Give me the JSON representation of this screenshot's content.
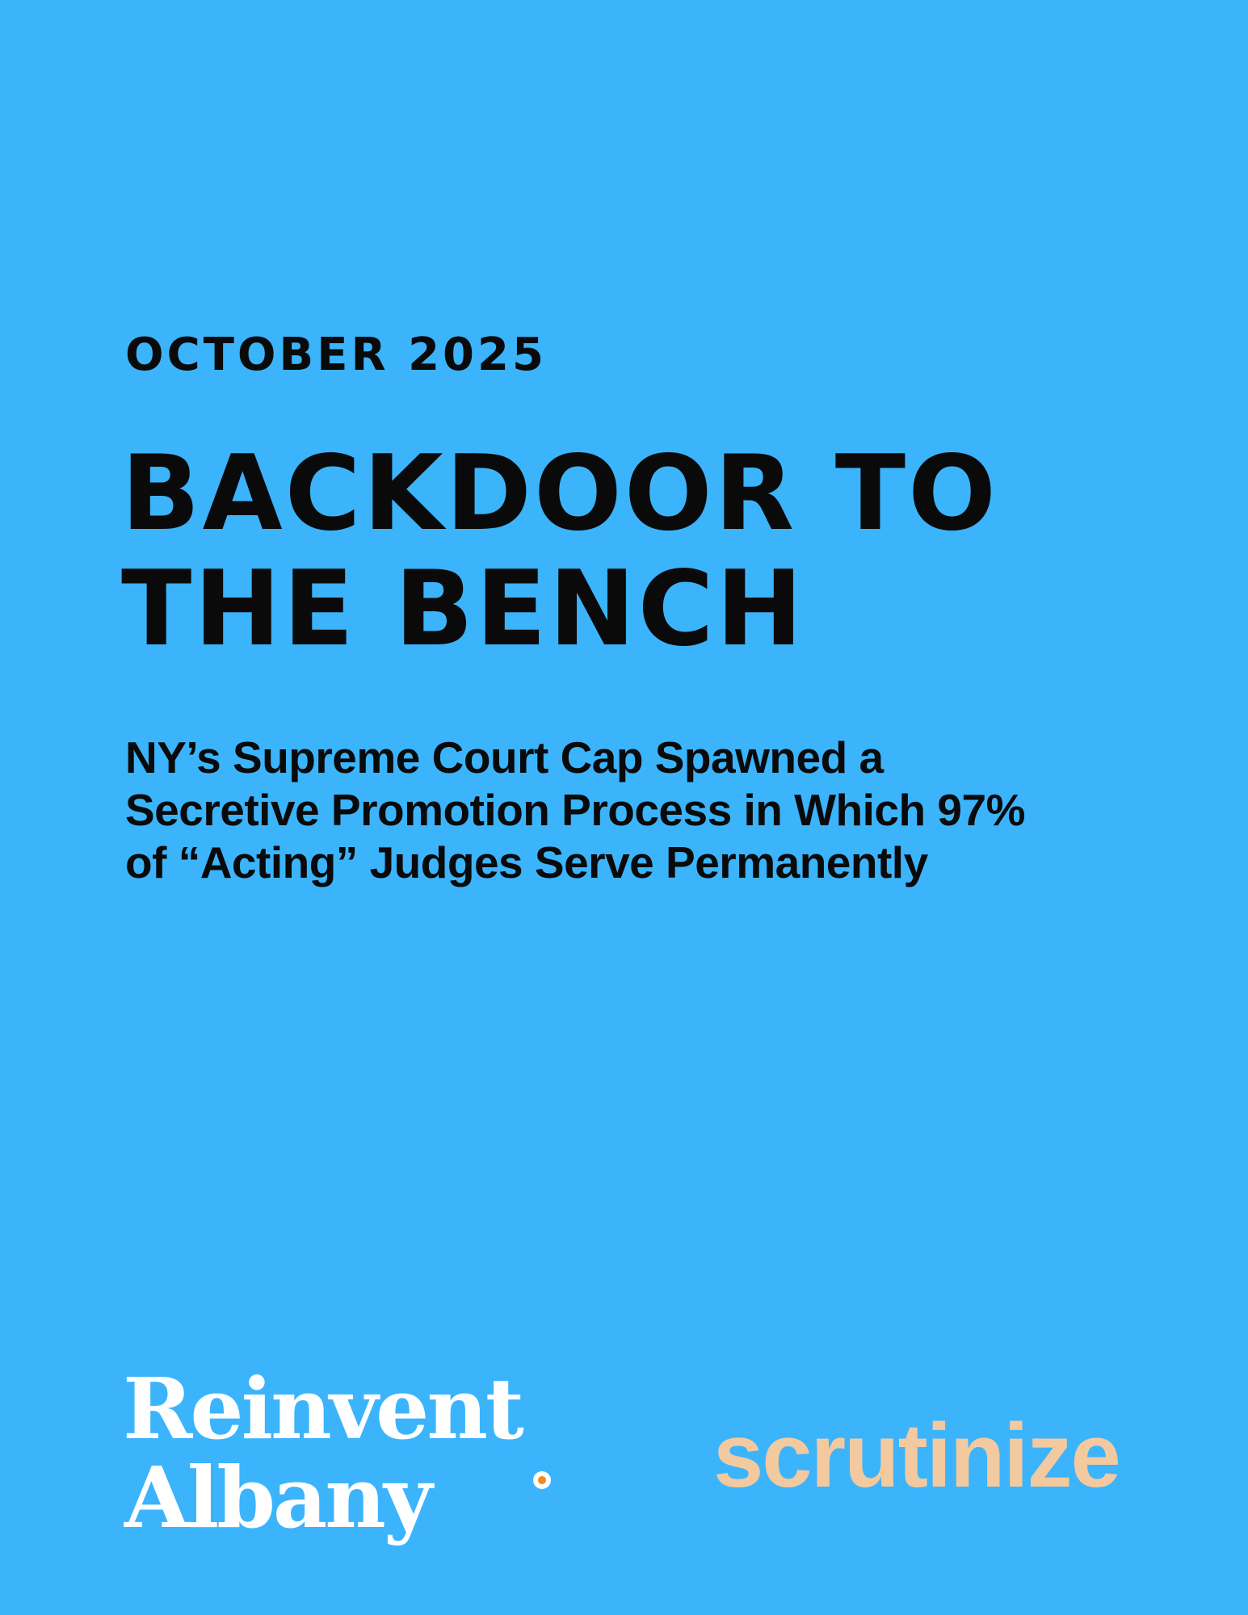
{
  "cover": {
    "date": "OCTOBER 2025",
    "title_lines": [
      "BACKDOOR TO",
      "THE BENCH"
    ],
    "subtitle_lines": [
      "NY’s Supreme Court Cap Spawned a",
      "Secretive Promotion Process in Which 97%",
      "of “Acting” Judges Serve Permanently"
    ]
  },
  "logos": {
    "reinvent_albany_lines": [
      "Reinvent",
      "Albany"
    ],
    "scrutinize": "scrutinize"
  },
  "colors": {
    "background": "#3bb4fc",
    "text": "#0a0a0a",
    "reinvent_albany": "#ffffff",
    "reinvent_albany_dot": "#f08a1f",
    "scrutinize": "#f3c9a0"
  }
}
